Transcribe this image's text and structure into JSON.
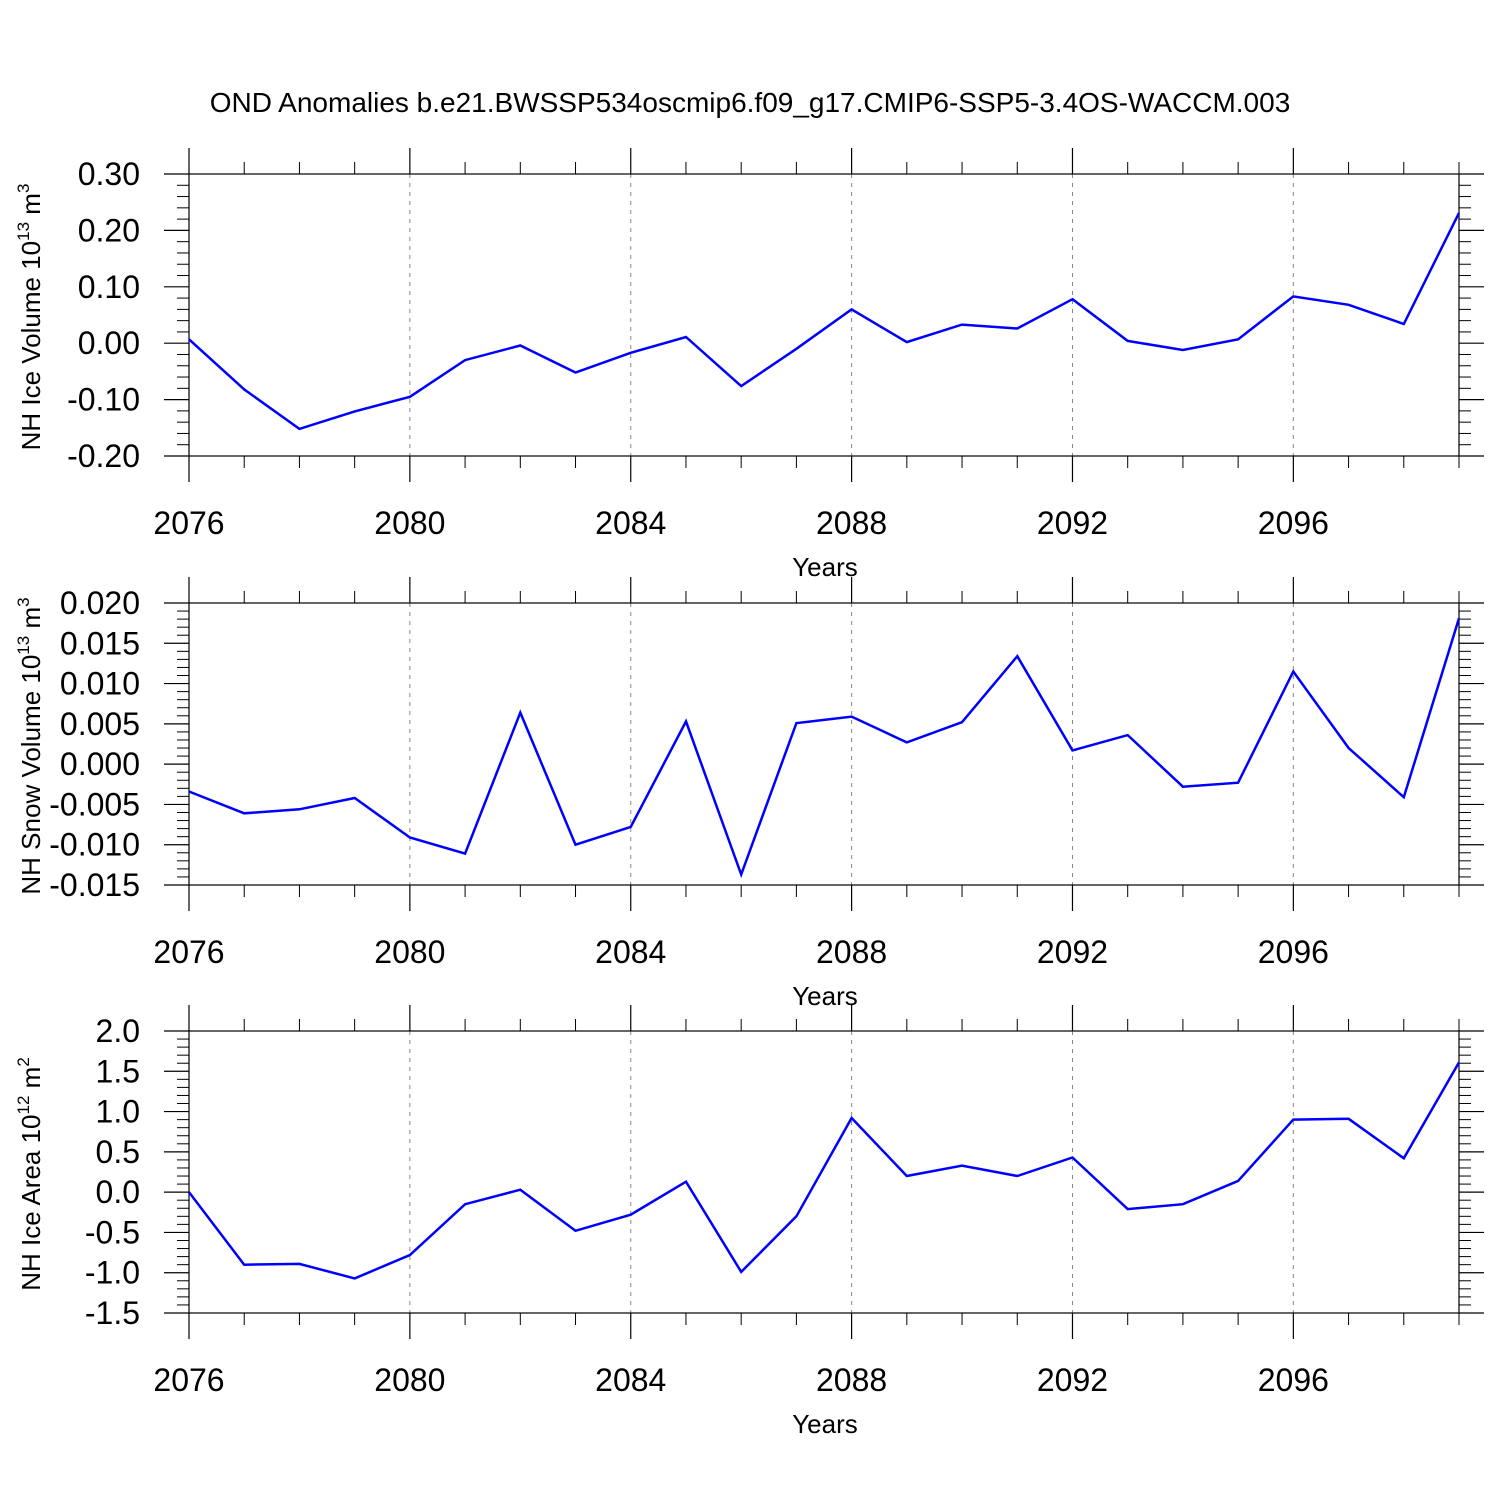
{
  "title": "OND Anomalies b.e21.BWSSP534oscmip6.f09_g17.CMIP6-SSP5-3.4OS-WACCM.003",
  "colors": {
    "series": "#0000ff",
    "axis": "#000000",
    "grid": "#888888",
    "background": "#ffffff"
  },
  "chart_data": [
    {
      "type": "line",
      "xlabel": "Years",
      "ylabel": {
        "main": "NH Ice Volume 10",
        "exp": "13",
        "unit": " m",
        "unit_exp": "3"
      },
      "xlim": [
        2076,
        2099
      ],
      "ylim": [
        -0.2,
        0.3
      ],
      "xticks": [
        2076,
        2080,
        2084,
        2088,
        2092,
        2096
      ],
      "xtick_labels": [
        "2076",
        "2080",
        "2084",
        "2088",
        "2092",
        "2096"
      ],
      "yticks": [
        -0.2,
        -0.1,
        0.0,
        0.1,
        0.2,
        0.3
      ],
      "ytick_labels": [
        "-0.20",
        "-0.10",
        "0.00",
        "0.10",
        "0.20",
        "0.30"
      ],
      "grid": "vertical dashed at major x ticks",
      "x": [
        2076,
        2077,
        2078,
        2079,
        2080,
        2081,
        2082,
        2083,
        2084,
        2085,
        2086,
        2087,
        2088,
        2089,
        2090,
        2091,
        2092,
        2093,
        2094,
        2095,
        2096,
        2097,
        2098,
        2099
      ],
      "values": [
        0.007,
        -0.082,
        -0.152,
        -0.121,
        -0.095,
        -0.03,
        -0.004,
        -0.052,
        -0.017,
        0.011,
        -0.076,
        -0.01,
        0.06,
        0.002,
        0.033,
        0.026,
        0.078,
        0.004,
        -0.012,
        0.007,
        0.083,
        0.068,
        0.034,
        0.231
      ]
    },
    {
      "type": "line",
      "xlabel": "Years",
      "ylabel": {
        "main": "NH Snow Volume 10",
        "exp": "13",
        "unit": " m",
        "unit_exp": "3"
      },
      "xlim": [
        2076,
        2099
      ],
      "ylim": [
        -0.015,
        0.02
      ],
      "xticks": [
        2076,
        2080,
        2084,
        2088,
        2092,
        2096
      ],
      "xtick_labels": [
        "2076",
        "2080",
        "2084",
        "2088",
        "2092",
        "2096"
      ],
      "yticks": [
        -0.015,
        -0.01,
        -0.005,
        0.0,
        0.005,
        0.01,
        0.015,
        0.02
      ],
      "ytick_labels": [
        "-0.015",
        "-0.010",
        "-0.005",
        "0.000",
        "0.005",
        "0.010",
        "0.015",
        "0.020"
      ],
      "grid": "vertical dashed at major x ticks",
      "x": [
        2076,
        2077,
        2078,
        2079,
        2080,
        2081,
        2082,
        2083,
        2084,
        2085,
        2086,
        2087,
        2088,
        2089,
        2090,
        2091,
        2092,
        2093,
        2094,
        2095,
        2096,
        2097,
        2098,
        2099
      ],
      "values": [
        -0.0034,
        -0.0061,
        -0.0056,
        -0.0042,
        -0.0091,
        -0.0111,
        0.0064,
        -0.01,
        -0.0078,
        0.0053,
        -0.0137,
        0.0051,
        0.0059,
        0.0027,
        0.0052,
        0.0134,
        0.0017,
        0.0036,
        -0.0028,
        -0.0023,
        0.0115,
        0.002,
        -0.0041,
        0.0181
      ]
    },
    {
      "type": "line",
      "xlabel": "Years",
      "ylabel": {
        "main": "NH Ice Area 10",
        "exp": "12",
        "unit": " m",
        "unit_exp": "2"
      },
      "xlim": [
        2076,
        2099
      ],
      "ylim": [
        -1.5,
        2.0
      ],
      "xticks": [
        2076,
        2080,
        2084,
        2088,
        2092,
        2096
      ],
      "xtick_labels": [
        "2076",
        "2080",
        "2084",
        "2088",
        "2092",
        "2096"
      ],
      "yticks": [
        -1.5,
        -1.0,
        -0.5,
        0.0,
        0.5,
        1.0,
        1.5,
        2.0
      ],
      "ytick_labels": [
        "-1.5",
        "-1.0",
        "-0.5",
        "0.0",
        "0.5",
        "1.0",
        "1.5",
        "2.0"
      ],
      "grid": "vertical dashed at major x ticks",
      "x": [
        2076,
        2077,
        2078,
        2079,
        2080,
        2081,
        2082,
        2083,
        2084,
        2085,
        2086,
        2087,
        2088,
        2089,
        2090,
        2091,
        2092,
        2093,
        2094,
        2095,
        2096,
        2097,
        2098,
        2099
      ],
      "values": [
        0.0,
        -0.9,
        -0.89,
        -1.07,
        -0.78,
        -0.15,
        0.03,
        -0.48,
        -0.28,
        0.13,
        -0.99,
        -0.3,
        0.92,
        0.2,
        0.33,
        0.2,
        0.43,
        -0.21,
        -0.15,
        0.14,
        0.9,
        0.91,
        0.42,
        1.61
      ]
    }
  ]
}
